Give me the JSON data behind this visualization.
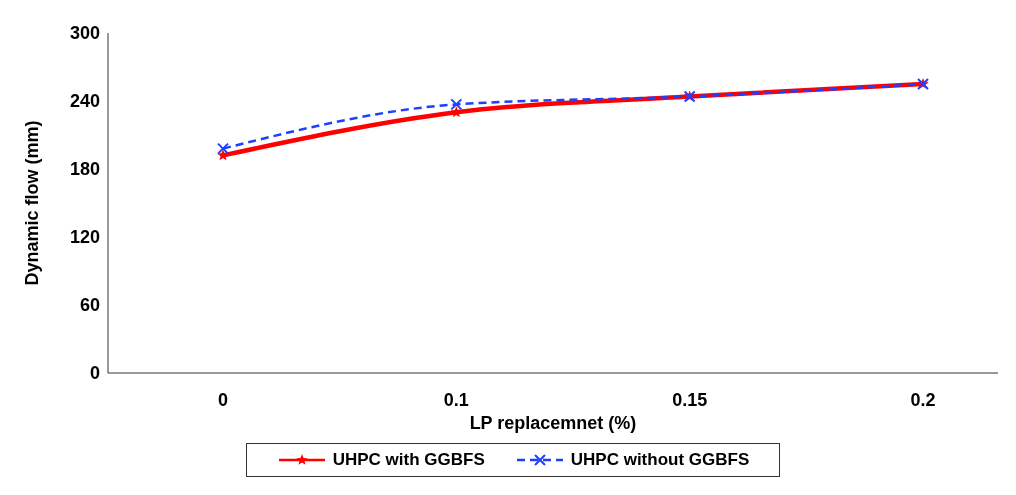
{
  "chart_data": {
    "type": "line",
    "xlabel": "LP replacemnet (%)",
    "ylabel": "Dynamic flow (mm)",
    "categories": [
      "0",
      "0.1",
      "0.15",
      "0.2"
    ],
    "ylim": [
      0,
      300
    ],
    "yticks": [
      0,
      60,
      120,
      180,
      240,
      300
    ],
    "grid": false,
    "legend": "bottom",
    "series": [
      {
        "name": "UHPC with GGBFS",
        "color": "#ff0000",
        "values": [
          192,
          230,
          244,
          255
        ],
        "marker": "star",
        "line_style": "solid"
      },
      {
        "name": "UHPC without GGBFS",
        "color": "#1f3fff",
        "values": [
          198,
          237,
          244,
          255
        ],
        "marker": "cross",
        "line_style": "dashed"
      }
    ]
  }
}
